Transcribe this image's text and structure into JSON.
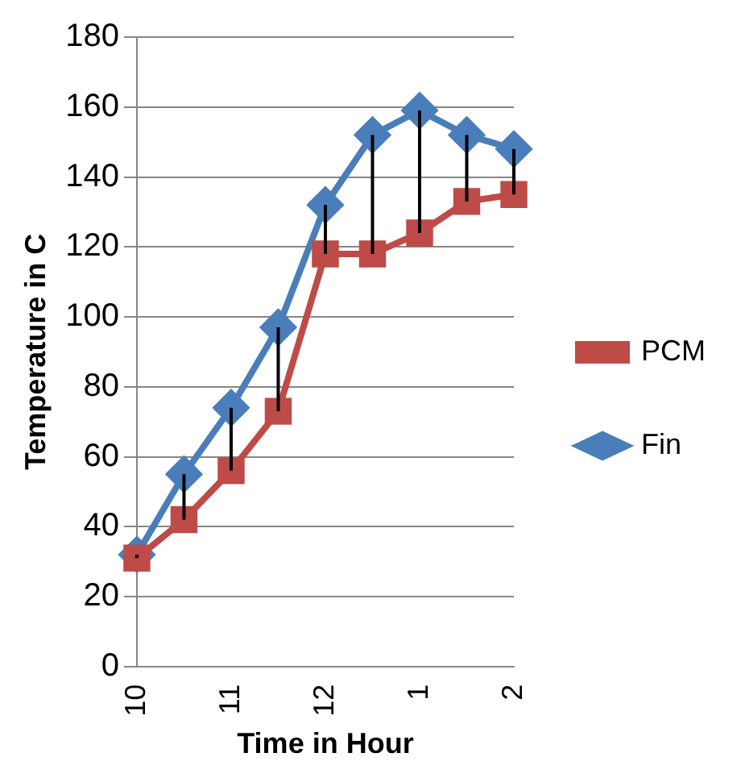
{
  "chart_data": {
    "type": "line",
    "xlabel": "Time in Hour",
    "ylabel": "Temperature in C",
    "categories": [
      "10",
      null,
      "11",
      null,
      "12",
      null,
      "1",
      null,
      "2"
    ],
    "series": [
      {
        "name": "Fin",
        "color": "#4a7ebb",
        "marker": "diamond",
        "values": [
          32,
          55,
          74,
          97,
          132,
          152,
          159,
          152,
          148
        ],
        "errors": [
          [
            31,
            32
          ],
          [
            42,
            55
          ],
          [
            56,
            74
          ],
          [
            73,
            97
          ],
          [
            118,
            132
          ],
          [
            118,
            152
          ],
          [
            124,
            159
          ],
          [
            133,
            152
          ],
          [
            135,
            148
          ]
        ]
      },
      {
        "name": "PCM",
        "color": "#be4b48",
        "marker": "square",
        "values": [
          31,
          42,
          56,
          73,
          118,
          118,
          124,
          133,
          135
        ]
      }
    ],
    "ylim": [
      0,
      180
    ],
    "yticks": [
      0,
      20,
      40,
      60,
      80,
      100,
      120,
      140,
      160,
      180
    ],
    "grid": "y",
    "legend": "right"
  }
}
